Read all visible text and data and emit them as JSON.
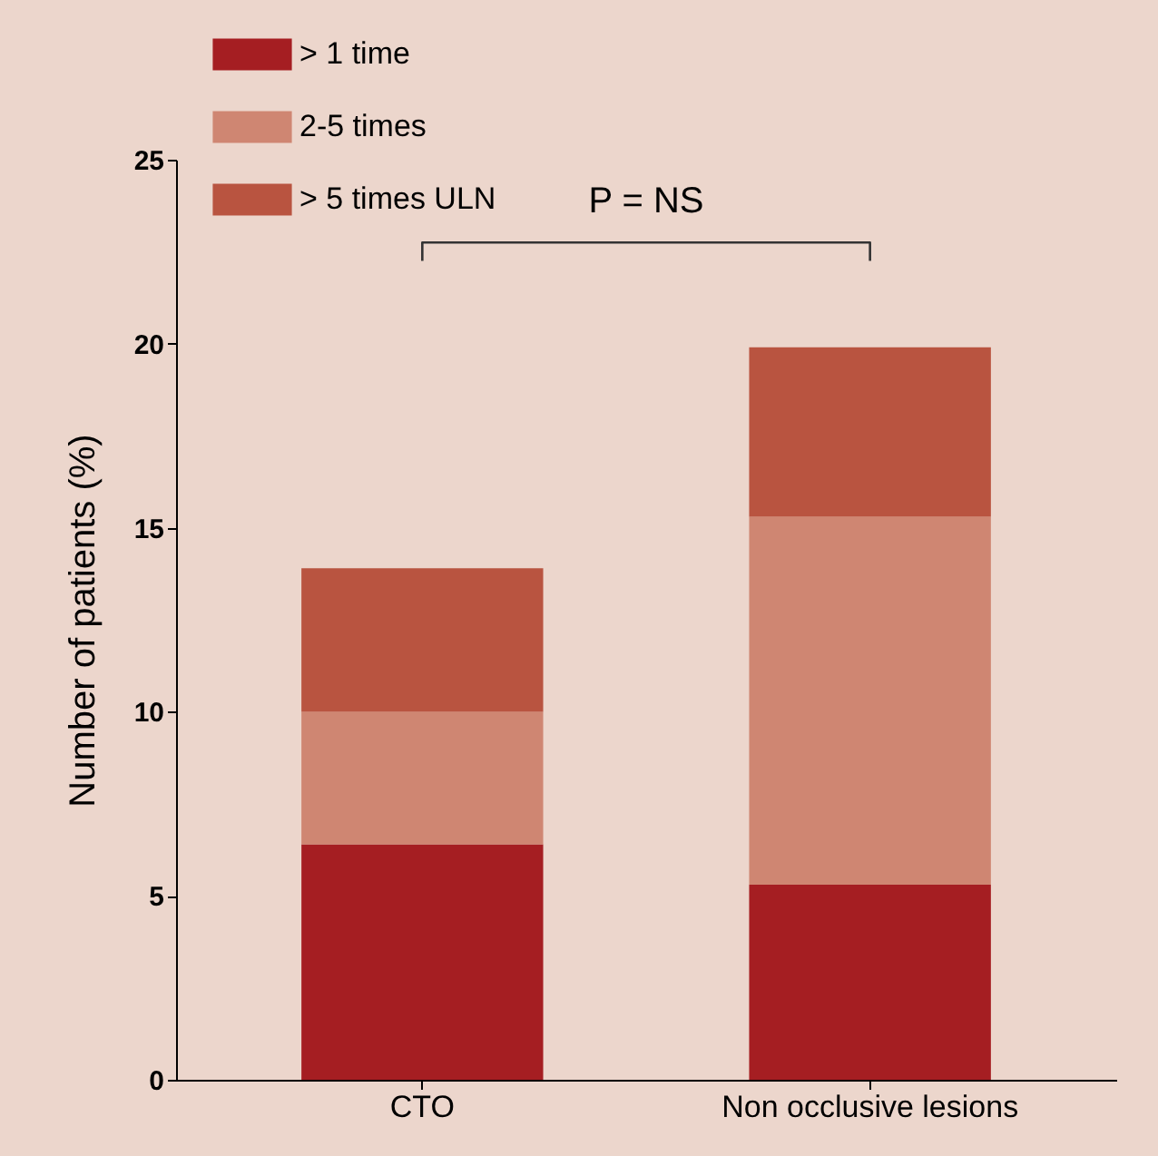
{
  "chart_data": {
    "type": "bar",
    "stacked": true,
    "categories": [
      "CTO",
      "Non occlusive lesions"
    ],
    "series": [
      {
        "name": "> 1 time",
        "color": "#a51e22",
        "values": [
          6.4,
          5.3
        ]
      },
      {
        "name": "2-5 times",
        "color": "#cf8672",
        "values": [
          3.6,
          10.0
        ]
      },
      {
        "name": "> 5 times ULN",
        "color": "#b95440",
        "values": [
          3.9,
          4.6
        ]
      }
    ],
    "ylabel": "Number of patients (%)",
    "ylim": [
      0,
      25
    ],
    "yticks": [
      0,
      5,
      10,
      15,
      20,
      25
    ],
    "annotations": [
      "P = NS"
    ],
    "legend": "top left",
    "grid": false
  }
}
